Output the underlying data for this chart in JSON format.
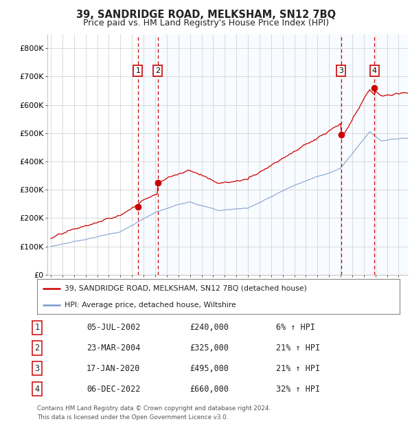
{
  "title": "39, SANDRIDGE ROAD, MELKSHAM, SN12 7BQ",
  "subtitle": "Price paid vs. HM Land Registry's House Price Index (HPI)",
  "ylim": [
    0,
    850000
  ],
  "yticks": [
    0,
    100000,
    200000,
    300000,
    400000,
    500000,
    600000,
    700000,
    800000
  ],
  "ytick_labels": [
    "£0",
    "£100K",
    "£200K",
    "£300K",
    "£400K",
    "£500K",
    "£600K",
    "£700K",
    "£800K"
  ],
  "background_color": "#ffffff",
  "plot_bg_color": "#ffffff",
  "grid_color": "#cccccc",
  "hpi_line_color": "#7799cc",
  "price_line_color": "#cc0000",
  "sale_marker_color": "#cc0000",
  "sale_vline_color": "#cc0000",
  "sale_shade_color": "#ddeeff",
  "transactions": [
    {
      "num": 1,
      "date_label": "05-JUL-2002",
      "date_x": 2002.51,
      "price": 240000,
      "pct": "6%",
      "direction": "↑"
    },
    {
      "num": 2,
      "date_label": "23-MAR-2004",
      "date_x": 2004.22,
      "price": 325000,
      "pct": "21%",
      "direction": "↑"
    },
    {
      "num": 3,
      "date_label": "17-JAN-2020",
      "date_x": 2020.04,
      "price": 495000,
      "pct": "21%",
      "direction": "↑"
    },
    {
      "num": 4,
      "date_label": "06-DEC-2022",
      "date_x": 2022.92,
      "price": 660000,
      "pct": "32%",
      "direction": "↑"
    }
  ],
  "legend_line1": "39, SANDRIDGE ROAD, MELKSHAM, SN12 7BQ (detached house)",
  "legend_line2": "HPI: Average price, detached house, Wiltshire",
  "footer_line1": "Contains HM Land Registry data © Crown copyright and database right 2024.",
  "footer_line2": "This data is licensed under the Open Government Licence v3.0.",
  "table_rows": [
    [
      "1",
      "05-JUL-2002",
      "£240,000",
      "6% ↑ HPI"
    ],
    [
      "2",
      "23-MAR-2004",
      "£325,000",
      "21% ↑ HPI"
    ],
    [
      "3",
      "17-JAN-2020",
      "£495,000",
      "21% ↑ HPI"
    ],
    [
      "4",
      "06-DEC-2022",
      "£660,000",
      "32% ↑ HPI"
    ]
  ],
  "xlim_start": 1994.7,
  "xlim_end": 2025.8
}
